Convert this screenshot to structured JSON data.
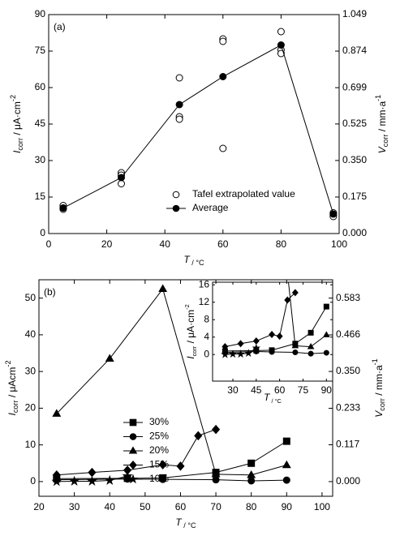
{
  "chart_data": [
    {
      "type": "line",
      "panel_label": "(a)",
      "xlabel": [
        "T",
        " / °C"
      ],
      "ylabel": [
        "I",
        "corr",
        " / μA·cm",
        "-2"
      ],
      "y2label": [
        "V",
        "corr",
        " / mm·a",
        "-1"
      ],
      "xlim": [
        0,
        100
      ],
      "xticks": [
        0,
        20,
        40,
        60,
        80,
        100
      ],
      "ylim": [
        0,
        90
      ],
      "yticks": [
        0,
        15,
        30,
        45,
        60,
        75,
        90
      ],
      "y2lim": [
        0,
        1.049
      ],
      "y2ticks": [
        {
          "value": 0,
          "label": "0.000"
        },
        {
          "value": 0.175,
          "label": "0.175"
        },
        {
          "value": 0.35,
          "label": "0.350"
        },
        {
          "value": 0.525,
          "label": "0.525"
        },
        {
          "value": 0.699,
          "label": "0.699"
        },
        {
          "value": 0.874,
          "label": "0.874"
        },
        {
          "value": 1.049,
          "label": "1.049"
        }
      ],
      "legend": "lower center",
      "series": [
        {
          "name": "Tafel extrapolated value",
          "marker": "open-circle",
          "line": false,
          "color": "#000000",
          "x": [
            5,
            5,
            5,
            25,
            25,
            25,
            45,
            45,
            45,
            60,
            60,
            60,
            80,
            80,
            80,
            98,
            98,
            98
          ],
          "values": [
            11.5,
            10.5,
            10,
            25,
            24,
            20.5,
            64,
            48,
            47,
            80,
            79,
            35,
            83,
            75.5,
            74,
            8.5,
            7.5,
            7
          ]
        },
        {
          "name": "Average",
          "marker": "circle",
          "line": true,
          "color": "#000000",
          "x": [
            5,
            25,
            45,
            60,
            80,
            98
          ],
          "values": [
            10.5,
            23,
            53,
            64.5,
            77.5,
            8
          ]
        }
      ]
    },
    {
      "type": "line",
      "panel_label": "(b)",
      "xlabel": [
        "T",
        " / °C"
      ],
      "ylabel": [
        "I",
        "corr",
        " / μAcm",
        "-2"
      ],
      "y2label": [
        "V",
        "corr",
        " / mm·a",
        "-1"
      ],
      "xlim": [
        20,
        103
      ],
      "xticks": [
        20,
        30,
        40,
        50,
        60,
        70,
        80,
        90,
        100
      ],
      "ylim": [
        -4,
        55
      ],
      "yticks": [
        0,
        10,
        20,
        30,
        40,
        50
      ],
      "y2lim": [
        -0.0466,
        0.6413
      ],
      "y2ticks": [
        {
          "value": 0,
          "label": "0.000"
        },
        {
          "value": 0.117,
          "label": "0.117"
        },
        {
          "value": 0.233,
          "label": "0.233"
        },
        {
          "value": 0.35,
          "label": "0.350"
        },
        {
          "value": 0.466,
          "label": "0.466"
        },
        {
          "value": 0.583,
          "label": "0.583"
        }
      ],
      "legend": "center left",
      "series": [
        {
          "name": "30%",
          "marker": "square",
          "line": true,
          "color": "#000000",
          "x": [
            25,
            45,
            55,
            70,
            80,
            90
          ],
          "values": [
            0.8,
            0.9,
            1,
            2.5,
            5,
            11
          ]
        },
        {
          "name": "25%",
          "marker": "circle",
          "line": true,
          "color": "#000000",
          "x": [
            25,
            45,
            55,
            70,
            80,
            90
          ],
          "values": [
            0.5,
            0.7,
            0.6,
            0.5,
            0.2,
            0.4
          ]
        },
        {
          "name": "20%",
          "marker": "triangle",
          "line": true,
          "color": "#000000",
          "x": [
            25,
            40,
            55,
            70,
            80,
            90
          ],
          "values": [
            18.5,
            33.5,
            52.5,
            2,
            1.8,
            4.5
          ]
        },
        {
          "name": "15%",
          "marker": "diamond",
          "line": true,
          "color": "#000000",
          "x": [
            25,
            35,
            45,
            55,
            60,
            65,
            70
          ],
          "values": [
            1.8,
            2.5,
            3.1,
            4.6,
            4.2,
            12.5,
            14.2
          ]
        },
        {
          "name": "10%",
          "marker": "star",
          "line": true,
          "color": "#000000",
          "x": [
            25,
            30,
            35,
            40,
            45
          ],
          "values": [
            0,
            0.1,
            0.1,
            0.3,
            1.5
          ]
        }
      ],
      "inset": {
        "xlabel": [
          "T",
          " / °C"
        ],
        "ylabel": [
          "I",
          "corr",
          " / μA·cm",
          "-2"
        ],
        "xlim": [
          17,
          94
        ],
        "xticks": [
          30,
          45,
          60,
          75,
          90
        ],
        "ylim": [
          -6.1,
          16.6
        ],
        "yticks": [
          0,
          4,
          8,
          12,
          16
        ]
      }
    }
  ]
}
